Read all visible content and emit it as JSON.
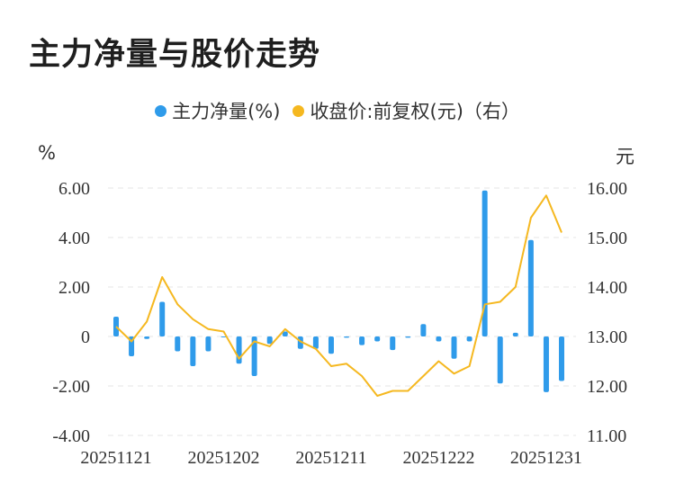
{
  "title": "主力净量与股价走势",
  "legend": {
    "series1": "主力净量(%)",
    "series2": "收盘价:前复权(元)（右）"
  },
  "units": {
    "left": "%",
    "right": "元"
  },
  "colors": {
    "bar": "#2f9bea",
    "line": "#f5b820",
    "grid": "#e6e6e6"
  },
  "chart_data": {
    "type": "bar",
    "x_tick_labels": [
      "20251121",
      "20251202",
      "20251211",
      "20251222",
      "20251231"
    ],
    "y_left_ticks": [
      "6.00",
      "4.00",
      "2.00",
      "0",
      "-2.00",
      "-4.00"
    ],
    "y_right_ticks": [
      "16.00",
      "15.00",
      "14.00",
      "13.00",
      "12.00",
      "11.00"
    ],
    "ylim_left": [
      -4,
      6
    ],
    "ylim_right": [
      11,
      16
    ],
    "grid": true,
    "legend_position": "top-center",
    "series": [
      {
        "name": "主力净量(%)",
        "type": "bar",
        "axis": "left",
        "values": [
          0.8,
          -0.8,
          -0.1,
          1.4,
          -0.6,
          -1.2,
          -0.6,
          0,
          -1.1,
          -1.6,
          -0.3,
          0.2,
          -0.5,
          -0.5,
          -0.7,
          -0.05,
          -0.35,
          -0.2,
          -0.55,
          -0.05,
          0.5,
          -0.2,
          -0.9,
          -0.2,
          5.9,
          -1.9,
          0.15,
          3.9,
          -2.25,
          -1.8
        ]
      },
      {
        "name": "收盘价:前复权(元)（右）",
        "type": "line",
        "axis": "right",
        "values": [
          13.2,
          12.9,
          13.3,
          14.2,
          13.65,
          13.35,
          13.15,
          13.1,
          12.55,
          12.9,
          12.8,
          13.15,
          12.9,
          12.75,
          12.4,
          12.45,
          12.2,
          11.8,
          11.9,
          11.9,
          12.2,
          12.5,
          12.25,
          12.4,
          13.65,
          13.7,
          14.0,
          15.4,
          15.85,
          15.1
        ]
      }
    ]
  }
}
